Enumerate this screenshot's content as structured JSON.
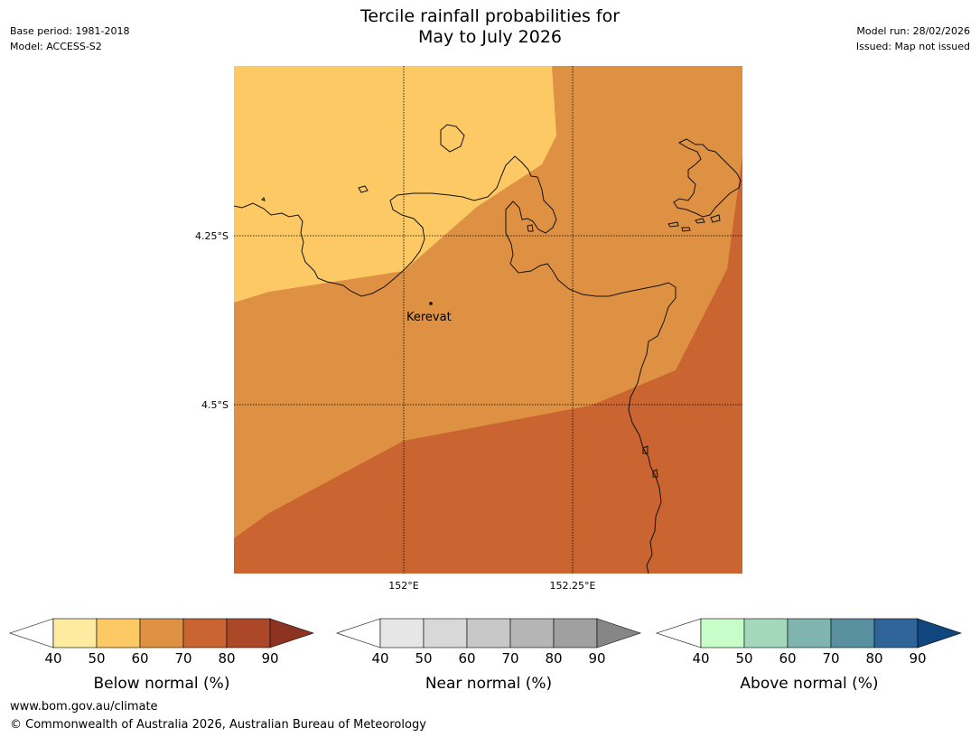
{
  "title": {
    "line1": "Tercile rainfall probabilities for",
    "line2": "May to July 2026"
  },
  "meta_left": {
    "base_period": "Base period: 1981-2018",
    "model": "Model: ACCESS-S2"
  },
  "meta_right": {
    "model_run": "Model run: 28/02/2026",
    "issued": "Issued: Map not issued"
  },
  "map": {
    "lat_labels": [
      "4.25°S",
      "4.5°S"
    ],
    "lon_labels": [
      "152°E",
      "152.25°E"
    ],
    "place": "Kerevat",
    "fill_colors": [
      "#fdc964",
      "#df9143",
      "#ca6431"
    ]
  },
  "legends": [
    {
      "label": "Below normal (%)",
      "ticks": [
        "40",
        "50",
        "60",
        "70",
        "80",
        "90"
      ],
      "colors": [
        "#ffffff",
        "#feeb9f",
        "#fdc964",
        "#df9143",
        "#ca6431",
        "#ac4828",
        "#8d3322"
      ]
    },
    {
      "label": "Near normal (%)",
      "ticks": [
        "40",
        "50",
        "60",
        "70",
        "80",
        "90"
      ],
      "colors": [
        "#ffffff",
        "#e6e6e6",
        "#d8d8d8",
        "#c8c8c8",
        "#b5b5b5",
        "#a0a0a0",
        "#868686"
      ]
    },
    {
      "label": "Above normal (%)",
      "ticks": [
        "40",
        "50",
        "60",
        "70",
        "80",
        "90"
      ],
      "colors": [
        "#ffffff",
        "#c8fcc8",
        "#a3d9ba",
        "#80b4af",
        "#5990a0",
        "#2e6498",
        "#10467e"
      ]
    }
  ],
  "footer": {
    "url": "www.bom.gov.au/climate",
    "copyright": "© Commonwealth of Australia 2026, Australian Bureau of Meteorology"
  }
}
